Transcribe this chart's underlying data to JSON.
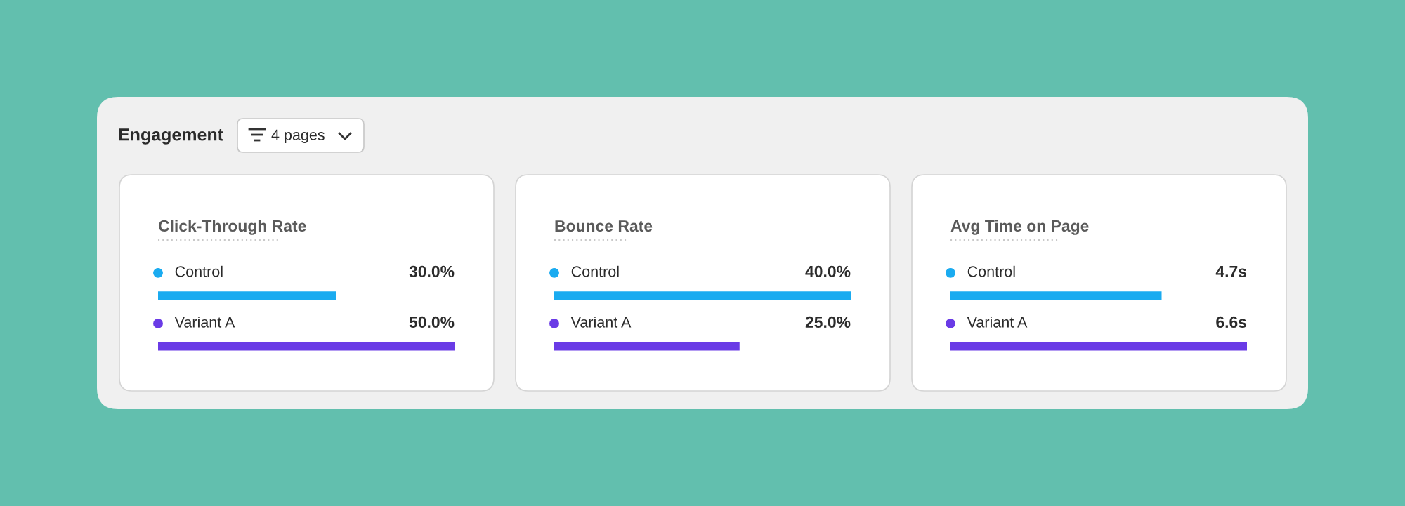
{
  "chart_data": [
    {
      "type": "other",
      "title": "Engagement",
      "annotations": [
        "4 pages"
      ]
    },
    {
      "type": "bar",
      "orientation": "horizontal",
      "title": "Click-Through Rate",
      "categories": [
        "Control",
        "Variant A"
      ],
      "values": [
        30.0,
        50.0
      ],
      "colors": [
        "#1aabf0",
        "#6a3be6"
      ],
      "tick_labels": false,
      "value_labels": [
        "30.0%",
        "50.0%"
      ]
    },
    {
      "type": "bar",
      "orientation": "horizontal",
      "title": "Bounce Rate",
      "categories": [
        "Control",
        "Variant A"
      ],
      "values": [
        40.0,
        25.0
      ],
      "colors": [
        "#1aabf0",
        "#6a3be6"
      ],
      "tick_labels": false,
      "value_labels": [
        "40.0%",
        "25.0%"
      ]
    },
    {
      "type": "bar",
      "orientation": "horizontal",
      "title": "Avg Time on Page",
      "categories": [
        "Control",
        "Variant A"
      ],
      "values": [
        4.7,
        6.6
      ],
      "colors": [
        "#1aabf0",
        "#6a3be6"
      ],
      "tick_labels": false,
      "value_labels": [
        "4.7s",
        "6.6s"
      ]
    }
  ]
}
